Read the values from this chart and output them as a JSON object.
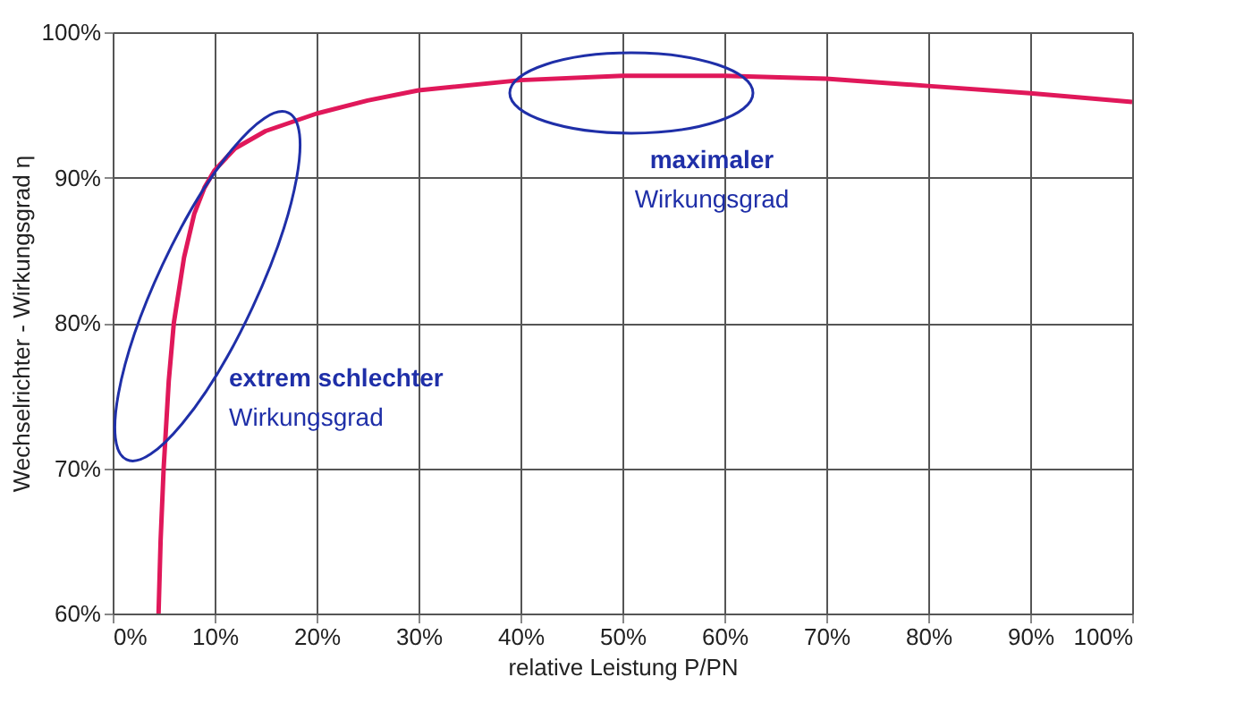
{
  "chart_data": {
    "type": "line",
    "xlabel": "relative Leistung P/PN",
    "ylabel": "Wechselrichter - Wirkungsgrad η",
    "x": [
      4.5,
      4.7,
      5,
      5.5,
      6,
      7,
      8,
      9,
      10,
      12,
      15,
      20,
      25,
      30,
      40,
      50,
      60,
      70,
      80,
      90,
      100
    ],
    "series": [
      {
        "color": "#e0185a",
        "values": [
          60,
          65,
          70,
          76,
          80,
          84.5,
          87.5,
          89.3,
          90.5,
          92,
          93.2,
          94.4,
          95.3,
          96,
          96.7,
          97,
          97,
          96.8,
          96.3,
          95.8,
          95.2
        ]
      }
    ],
    "xlim": [
      0,
      100
    ],
    "ylim": [
      60,
      100
    ],
    "xticks": [
      {
        "value": 0,
        "label": "0%"
      },
      {
        "value": 10,
        "label": "10%"
      },
      {
        "value": 20,
        "label": "20%"
      },
      {
        "value": 30,
        "label": "30%"
      },
      {
        "value": 40,
        "label": "40%"
      },
      {
        "value": 50,
        "label": "50%"
      },
      {
        "value": 60,
        "label": "60%"
      },
      {
        "value": 70,
        "label": "70%"
      },
      {
        "value": 80,
        "label": "80%"
      },
      {
        "value": 90,
        "label": "90%"
      },
      {
        "value": 100,
        "label": "100%"
      }
    ],
    "yticks": [
      {
        "value": 60,
        "label": "60%"
      },
      {
        "value": 70,
        "label": "70%"
      },
      {
        "value": 80,
        "label": "80%"
      },
      {
        "value": 90,
        "label": "90%"
      },
      {
        "value": 100,
        "label": "100%"
      }
    ],
    "annotations": [
      "maximaler\nWirkungsgrad",
      "extrem schlechter\nWirkungsgrad"
    ],
    "grid": true,
    "marker": "none",
    "line_style": "solid"
  }
}
